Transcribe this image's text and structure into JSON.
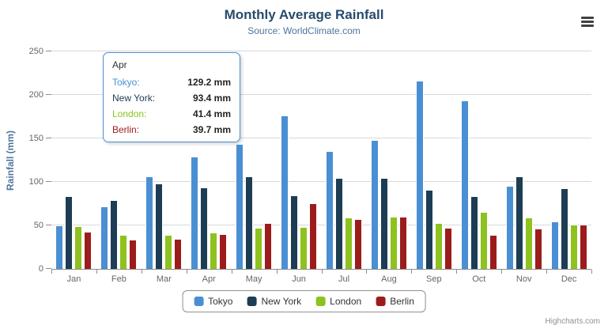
{
  "chart_data": {
    "type": "bar",
    "title": "Monthly Average Rainfall",
    "subtitle": "Source: WorldClimate.com",
    "xlabel": "",
    "ylabel": "Rainfall (mm)",
    "ylim": [
      0,
      250
    ],
    "y_ticks": [
      0,
      50,
      100,
      150,
      200,
      250
    ],
    "grid": true,
    "legend_position": "bottom",
    "categories": [
      "Jan",
      "Feb",
      "Mar",
      "Apr",
      "May",
      "Jun",
      "Jul",
      "Aug",
      "Sep",
      "Oct",
      "Nov",
      "Dec"
    ],
    "series": [
      {
        "name": "Tokyo",
        "color": "#4a8fd3",
        "values": [
          49.9,
          71.5,
          106.4,
          129.2,
          144.0,
          176.0,
          135.6,
          148.5,
          216.4,
          194.1,
          95.6,
          54.4
        ]
      },
      {
        "name": "New York",
        "color": "#1c3d54",
        "values": [
          83.6,
          78.8,
          98.5,
          93.4,
          106.0,
          84.5,
          105.0,
          104.3,
          91.2,
          83.5,
          106.6,
          92.3
        ]
      },
      {
        "name": "London",
        "color": "#8dc21f",
        "values": [
          48.9,
          38.8,
          39.3,
          41.4,
          47.0,
          48.3,
          59.0,
          59.6,
          52.4,
          65.2,
          59.3,
          51.2
        ]
      },
      {
        "name": "Berlin",
        "color": "#9c1c1c",
        "values": [
          42.4,
          33.2,
          34.5,
          39.7,
          52.6,
          75.5,
          57.4,
          60.4,
          47.6,
          39.1,
          46.8,
          51.1
        ]
      }
    ]
  },
  "tooltip": {
    "header": "Apr",
    "rows": [
      {
        "name": "Tokyo:",
        "value": "129.2 mm"
      },
      {
        "name": "New York:",
        "value": "93.4 mm"
      },
      {
        "name": "London:",
        "value": "41.4 mm"
      },
      {
        "name": "Berlin:",
        "value": "39.7 mm"
      }
    ]
  },
  "credits": "Highcharts.com",
  "icons": {
    "export_menu": "hamburger-menu-icon"
  }
}
